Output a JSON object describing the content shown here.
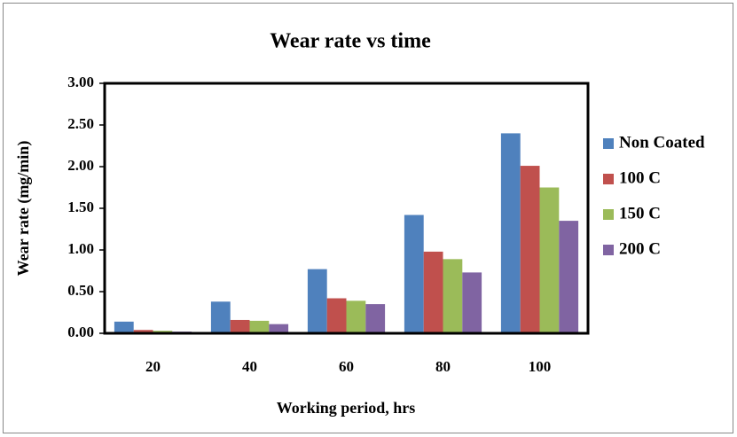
{
  "chart_data": {
    "type": "bar",
    "title": "Wear rate vs time",
    "x_label": "Working period, hrs",
    "y_label": "Wear rate (mg/min)",
    "categories": [
      "20",
      "40",
      "60",
      "80",
      "100"
    ],
    "series": [
      {
        "name": "Non Coated",
        "color": "#4f81bd",
        "values": [
          0.14,
          0.38,
          0.77,
          1.42,
          2.4
        ]
      },
      {
        "name": "100 C",
        "color": "#c0504d",
        "values": [
          0.04,
          0.16,
          0.42,
          0.98,
          2.01
        ]
      },
      {
        "name": "150 C",
        "color": "#9bbb59",
        "values": [
          0.03,
          0.15,
          0.39,
          0.89,
          1.75
        ]
      },
      {
        "name": "200 C",
        "color": "#8064a2",
        "values": [
          0.02,
          0.11,
          0.35,
          0.73,
          1.35
        ]
      }
    ],
    "ylim": [
      0,
      3
    ],
    "yticks": [
      {
        "value": 0,
        "label": "0.00"
      },
      {
        "value": 0.5,
        "label": "0.50"
      },
      {
        "value": 1,
        "label": "1.00"
      },
      {
        "value": 1.5,
        "label": "1.50"
      },
      {
        "value": 2,
        "label": "2.00"
      },
      {
        "value": 2.5,
        "label": "2.50"
      },
      {
        "value": 3,
        "label": "3.00"
      }
    ],
    "legend": "right"
  }
}
